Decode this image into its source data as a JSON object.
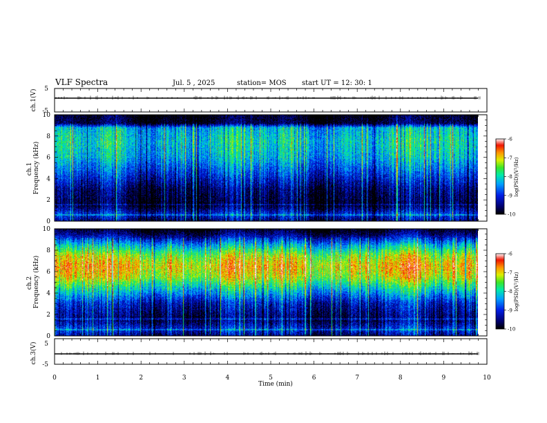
{
  "header": {
    "title": "VLF Spectra",
    "date": "Jul.  5  , 2025",
    "station": "station= MOS",
    "start_ut": "start  UT  =   12: 30: 1"
  },
  "chart_data": {
    "type": "heatmap",
    "xlabel": "Time  (min)",
    "xlim": [
      0,
      10
    ],
    "xticks": [
      "0",
      "1",
      "2",
      "3",
      "4",
      "5",
      "6",
      "7",
      "8",
      "9",
      "10"
    ],
    "data_end_min": 9.85,
    "panels": [
      {
        "id": "ch1-waveform",
        "type": "line",
        "ylabel": "ch.1(V)",
        "ylim": [
          -5,
          5
        ],
        "yticks": [
          "5",
          "-5"
        ],
        "baseline_v": 0
      },
      {
        "id": "ch1-spectrogram",
        "type": "heatmap",
        "ylabel": "ch.1\nFrequency  (kHz)",
        "ylabel_lines": [
          "ch.1",
          "Frequency  (kHz)"
        ],
        "ylim": [
          0,
          10
        ],
        "yticks": [
          "0",
          "2",
          "4",
          "6",
          "8",
          "10"
        ],
        "colorbar": {
          "label": "log(PSD)(V²/Hz)",
          "range": [
            -10,
            -6
          ],
          "ticks": [
            "-6",
            "-7",
            "-8",
            "-9",
            "-10"
          ]
        },
        "band_profile": [
          {
            "khz": 0.0,
            "level": -9.6
          },
          {
            "khz": 0.6,
            "level": -9.0
          },
          {
            "khz": 1.5,
            "level": -9.9
          },
          {
            "khz": 3.0,
            "level": -9.6
          },
          {
            "khz": 4.5,
            "level": -8.9
          },
          {
            "khz": 6.0,
            "level": -8.3
          },
          {
            "khz": 7.5,
            "level": -8.1
          },
          {
            "khz": 8.8,
            "level": -8.3
          },
          {
            "khz": 9.2,
            "level": -9.8
          },
          {
            "khz": 10.0,
            "level": -10.0
          }
        ]
      },
      {
        "id": "ch2-spectrogram",
        "type": "heatmap",
        "ylabel": "ch.2\nFrequency  (kHz)",
        "ylabel_lines": [
          "ch.2",
          "Frequency  (kHz)"
        ],
        "ylim": [
          0,
          10
        ],
        "yticks": [
          "0",
          "2",
          "4",
          "6",
          "8",
          "10"
        ],
        "colorbar": {
          "label": "log(PSD)(V²/Hz)",
          "range": [
            -10,
            -6
          ],
          "ticks": [
            "-6",
            "-7",
            "-8",
            "-9",
            "-10"
          ]
        },
        "band_profile": [
          {
            "khz": 0.0,
            "level": -9.5
          },
          {
            "khz": 0.6,
            "level": -9.0
          },
          {
            "khz": 1.5,
            "level": -9.7
          },
          {
            "khz": 3.0,
            "level": -9.2
          },
          {
            "khz": 4.5,
            "level": -8.0
          },
          {
            "khz": 5.5,
            "level": -7.2
          },
          {
            "khz": 6.5,
            "level": -6.9
          },
          {
            "khz": 7.5,
            "level": -7.3
          },
          {
            "khz": 8.5,
            "level": -8.3
          },
          {
            "khz": 9.5,
            "level": -9.6
          },
          {
            "khz": 10.0,
            "level": -10.0
          }
        ]
      },
      {
        "id": "ch3-waveform",
        "type": "line",
        "ylabel": "ch.3(V)",
        "ylim": [
          -5,
          5
        ],
        "yticks": [
          "5",
          "-5"
        ],
        "baseline_v": 0
      }
    ]
  }
}
